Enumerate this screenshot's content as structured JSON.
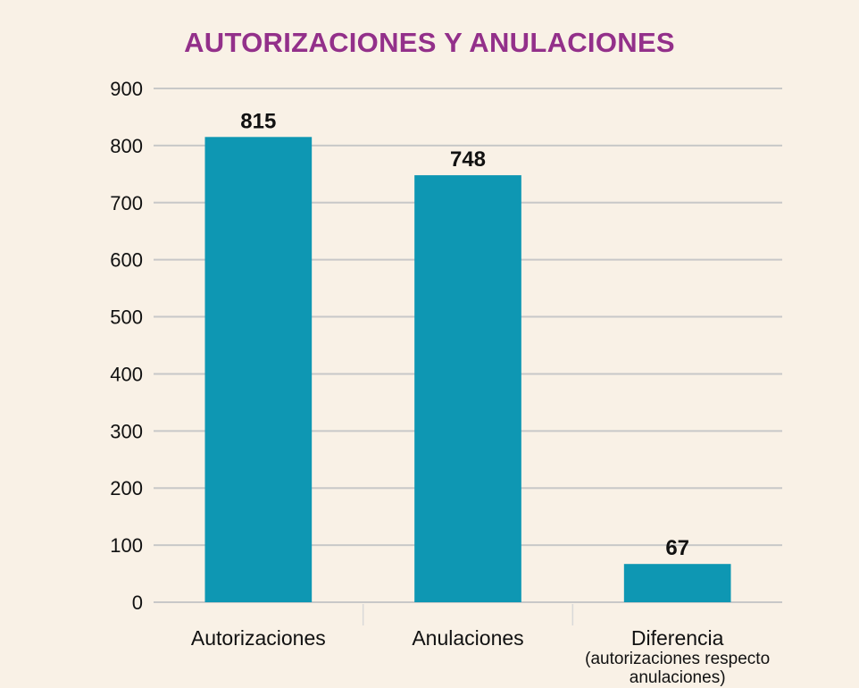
{
  "colors": {
    "background": "#f9f1e6",
    "title": "#93308a",
    "bar": "#0e97b3",
    "grid": "#c8c8c8",
    "text": "#111111"
  },
  "chart_data": {
    "type": "bar",
    "title": "AUTORIZACIONES Y ANULACIONES",
    "xlabel": "",
    "ylabel": "",
    "ylim": [
      0,
      900
    ],
    "yticks": [
      0,
      100,
      200,
      300,
      400,
      500,
      600,
      700,
      800,
      900
    ],
    "grid": true,
    "legend": "none",
    "categories": [
      [
        "Autorizaciones"
      ],
      [
        "Anulaciones"
      ],
      [
        "Diferencia",
        "(autorizaciones respecto",
        "anulaciones)"
      ]
    ],
    "values": [
      815,
      748,
      67
    ],
    "data_labels": [
      "815",
      "748",
      "67"
    ]
  }
}
